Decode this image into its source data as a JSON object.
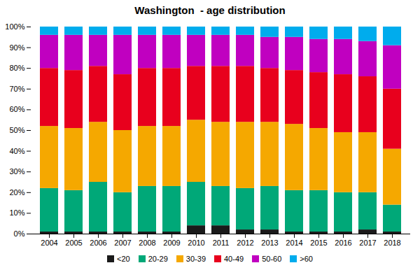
{
  "chart_data": {
    "type": "bar",
    "stacked": true,
    "title": "Washington  - age distribution",
    "categories": [
      "2004",
      "2005",
      "2006",
      "2007",
      "2008",
      "2009",
      "2010",
      "2011",
      "2012",
      "2013",
      "2014",
      "2015",
      "2016",
      "2017",
      "2018"
    ],
    "series": [
      {
        "name": "<20",
        "color": "#1a1a1a",
        "values": [
          1,
          1,
          1,
          1,
          1,
          1,
          4,
          4,
          2,
          2,
          1,
          1,
          1,
          2,
          1
        ]
      },
      {
        "name": "20-29",
        "color": "#00a878",
        "values": [
          21,
          20,
          24,
          19,
          22,
          22,
          21,
          19,
          20,
          21,
          20,
          20,
          19,
          18,
          13
        ]
      },
      {
        "name": "30-39",
        "color": "#f5a800",
        "values": [
          30,
          30,
          29,
          30,
          29,
          29,
          30,
          31,
          32,
          31,
          32,
          30,
          29,
          29,
          27
        ]
      },
      {
        "name": "40-49",
        "color": "#e8001d",
        "values": [
          28,
          28,
          27,
          27,
          28,
          28,
          26,
          27,
          27,
          26,
          26,
          27,
          28,
          27,
          29
        ]
      },
      {
        "name": "50-60",
        "color": "#c000c0",
        "values": [
          16,
          17,
          15,
          19,
          16,
          16,
          15,
          15,
          15,
          15,
          16,
          16,
          17,
          17,
          21
        ]
      },
      {
        "name": ">60",
        "color": "#00aced",
        "values": [
          4,
          4,
          4,
          4,
          4,
          4,
          4,
          4,
          4,
          5,
          5,
          6,
          6,
          7,
          9
        ]
      }
    ],
    "ylim": [
      0,
      100
    ],
    "yticks": [
      {
        "value": 0,
        "label": "0%"
      },
      {
        "value": 10,
        "label": "10%"
      },
      {
        "value": 20,
        "label": "20%"
      },
      {
        "value": 30,
        "label": "30%"
      },
      {
        "value": 40,
        "label": "40%"
      },
      {
        "value": 50,
        "label": "50%"
      },
      {
        "value": 60,
        "label": "60%"
      },
      {
        "value": 70,
        "label": "70%"
      },
      {
        "value": 80,
        "label": "80%"
      },
      {
        "value": 90,
        "label": "90%"
      },
      {
        "value": 100,
        "label": "100%"
      }
    ],
    "grid": false,
    "legend": "bottom"
  }
}
